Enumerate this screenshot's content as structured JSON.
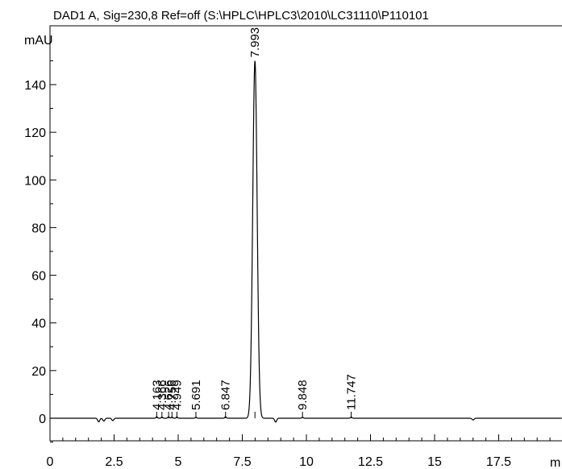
{
  "chart_data": {
    "type": "line",
    "title": "DAD1 A, Sig=230,8 Ref=off (S:\\HPLC\\HPLC3\\2010\\LC31110\\P110101",
    "ylabel": "mAU",
    "xlabel": "m",
    "xlim": [
      0,
      20
    ],
    "ylim": [
      -10,
      160
    ],
    "x_ticks": [
      "0",
      "2.5",
      "5",
      "7.5",
      "10",
      "12.5",
      "15",
      "17.5"
    ],
    "y_ticks": [
      "0",
      "20",
      "40",
      "60",
      "80",
      "100",
      "120",
      "140"
    ],
    "grid": false,
    "series": [
      {
        "color": "#000000",
        "peaks": [
          {
            "rt": 4.163,
            "height": 0.6,
            "label": "4.163"
          },
          {
            "rt": 4.366,
            "height": 0.5,
            "label": "4.366"
          },
          {
            "rt": 4.626,
            "height": 0.6,
            "label": "4.626"
          },
          {
            "rt": 4.756,
            "height": 0.5,
            "label": "4.756"
          },
          {
            "rt": 4.949,
            "height": 0.5,
            "label": "4.949"
          },
          {
            "rt": 5.691,
            "height": 0.4,
            "label": "5.691"
          },
          {
            "rt": 6.847,
            "height": 0.6,
            "label": "6.847"
          },
          {
            "rt": 7.993,
            "height": 150,
            "label": "7.993"
          },
          {
            "rt": 9.848,
            "height": 0.4,
            "label": "9.848"
          },
          {
            "rt": 11.747,
            "height": 0.5,
            "label": "11.747"
          }
        ],
        "baseline_disturbances": [
          {
            "x": 1.9,
            "y": -1.5
          },
          {
            "x": 2.1,
            "y": -1.2
          },
          {
            "x": 2.45,
            "y": -1.0
          },
          {
            "x": 8.8,
            "y": -1.6
          },
          {
            "x": 16.5,
            "y": -0.7
          }
        ]
      }
    ]
  }
}
